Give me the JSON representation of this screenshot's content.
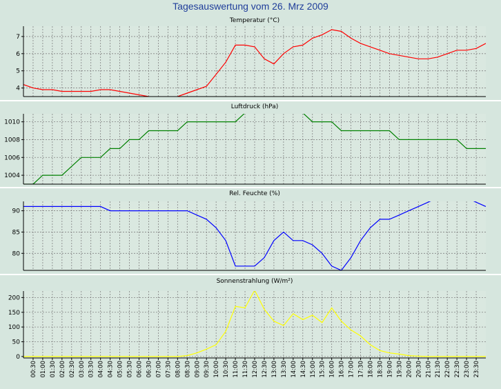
{
  "page_title": "Tagesauswertung vom 26. Mrz 2009",
  "x_labels": [
    "00:30",
    "01:00",
    "01:30",
    "02:00",
    "02:30",
    "03:00",
    "03:30",
    "04:00",
    "04:30",
    "05:00",
    "05:30",
    "06:00",
    "06:30",
    "07:00",
    "07:30",
    "08:00",
    "08:30",
    "09:00",
    "09:30",
    "10:00",
    "10:30",
    "11:00",
    "11:30",
    "12:00",
    "12:30",
    "13:00",
    "13:30",
    "14:00",
    "14:30",
    "15:00",
    "15:30",
    "16:00",
    "16:30",
    "17:00",
    "17:30",
    "18:00",
    "18:30",
    "19:00",
    "19:30",
    "20:00",
    "20:30",
    "21:00",
    "21:30",
    "22:00",
    "22:30",
    "23:00",
    "23:30"
  ],
  "chart_data": [
    {
      "type": "line",
      "title": "Temperatur (°C)",
      "color": "#ff0000",
      "ylim": [
        3.5,
        7.6
      ],
      "yticks": [
        4,
        5,
        6,
        7
      ],
      "x": [
        "00:00",
        "00:30",
        "01:00",
        "01:30",
        "02:00",
        "02:30",
        "03:00",
        "03:30",
        "04:00",
        "04:30",
        "05:00",
        "05:30",
        "06:00",
        "06:30",
        "07:00",
        "07:30",
        "08:00",
        "08:30",
        "09:00",
        "09:30",
        "10:00",
        "10:30",
        "11:00",
        "11:30",
        "12:00",
        "12:30",
        "13:00",
        "13:30",
        "14:00",
        "14:30",
        "15:00",
        "15:30",
        "16:00",
        "16:30",
        "17:00",
        "17:30",
        "18:00",
        "18:30",
        "19:00",
        "19:30",
        "20:00",
        "20:30",
        "21:00",
        "21:30",
        "22:00",
        "22:30",
        "23:00",
        "23:30",
        "24:00"
      ],
      "values": [
        4.2,
        4.0,
        3.9,
        3.9,
        3.8,
        3.8,
        3.8,
        3.8,
        3.9,
        3.9,
        3.8,
        3.7,
        3.6,
        3.5,
        3.4,
        3.4,
        3.5,
        3.7,
        3.9,
        4.1,
        4.8,
        5.5,
        6.5,
        6.5,
        6.4,
        5.7,
        5.4,
        6.0,
        6.4,
        6.5,
        6.9,
        7.1,
        7.4,
        7.3,
        6.9,
        6.6,
        6.4,
        6.2,
        6.0,
        5.9,
        5.8,
        5.7,
        5.7,
        5.8,
        6.0,
        6.2,
        6.2,
        6.3,
        6.6
      ]
    },
    {
      "type": "line",
      "title": "Luftdruck (hPa)",
      "color": "#008000",
      "ylim": [
        1003.0,
        1010.9
      ],
      "yticks": [
        1004,
        1006,
        1008,
        1010
      ],
      "x": [
        "00:00",
        "00:30",
        "01:00",
        "01:30",
        "02:00",
        "02:30",
        "03:00",
        "03:30",
        "04:00",
        "04:30",
        "05:00",
        "05:30",
        "06:00",
        "06:30",
        "07:00",
        "07:30",
        "08:00",
        "08:30",
        "09:00",
        "09:30",
        "10:00",
        "10:30",
        "11:00",
        "11:30",
        "12:00",
        "12:30",
        "13:00",
        "13:30",
        "14:00",
        "14:30",
        "15:00",
        "15:30",
        "16:00",
        "16:30",
        "17:00",
        "17:30",
        "18:00",
        "18:30",
        "19:00",
        "19:30",
        "20:00",
        "20:30",
        "21:00",
        "21:30",
        "22:00",
        "22:30",
        "23:00",
        "23:30",
        "24:00"
      ],
      "values": [
        1003,
        1003,
        1004,
        1004,
        1004,
        1005,
        1006,
        1006,
        1006,
        1007,
        1007,
        1008,
        1008,
        1009,
        1009,
        1009,
        1009,
        1010,
        1010,
        1010,
        1010,
        1010,
        1010,
        1011,
        1011,
        1011,
        1011,
        1011,
        1011,
        1011,
        1010,
        1010,
        1010,
        1009,
        1009,
        1009,
        1009,
        1009,
        1009,
        1008,
        1008,
        1008,
        1008,
        1008,
        1008,
        1008,
        1007,
        1007,
        1007
      ]
    },
    {
      "type": "line",
      "title": "Rel. Feuchte (%)",
      "color": "#0000ff",
      "ylim": [
        76.0,
        92.2
      ],
      "yticks": [
        80,
        85,
        90
      ],
      "x": [
        "00:00",
        "00:30",
        "01:00",
        "01:30",
        "02:00",
        "02:30",
        "03:00",
        "03:30",
        "04:00",
        "04:30",
        "05:00",
        "05:30",
        "06:00",
        "06:30",
        "07:00",
        "07:30",
        "08:00",
        "08:30",
        "09:00",
        "09:30",
        "10:00",
        "10:30",
        "11:00",
        "11:30",
        "12:00",
        "12:30",
        "13:00",
        "13:30",
        "14:00",
        "14:30",
        "15:00",
        "15:30",
        "16:00",
        "16:30",
        "17:00",
        "17:30",
        "18:00",
        "18:30",
        "19:00",
        "19:30",
        "20:00",
        "20:30",
        "21:00",
        "21:30",
        "22:00",
        "22:30",
        "23:00",
        "23:30",
        "24:00"
      ],
      "values": [
        91,
        91,
        91,
        91,
        91,
        91,
        91,
        91,
        91,
        90,
        90,
        90,
        90,
        90,
        90,
        90,
        90,
        90,
        89,
        88,
        86,
        83,
        77,
        77,
        77,
        79,
        83,
        85,
        83,
        83,
        82,
        80,
        77,
        76,
        79,
        83,
        86,
        88,
        88,
        89,
        90,
        91,
        92,
        93,
        94,
        94,
        93,
        92,
        91
      ]
    },
    {
      "type": "line",
      "title": "Sonnenstrahlung (W/m²)",
      "color": "#ffff00",
      "ylim": [
        -5,
        222
      ],
      "yticks": [
        0,
        50,
        100,
        150,
        200
      ],
      "x": [
        "00:00",
        "00:30",
        "01:00",
        "01:30",
        "02:00",
        "02:30",
        "03:00",
        "03:30",
        "04:00",
        "04:30",
        "05:00",
        "05:30",
        "06:00",
        "06:30",
        "07:00",
        "07:30",
        "08:00",
        "08:30",
        "09:00",
        "09:30",
        "10:00",
        "10:30",
        "11:00",
        "11:30",
        "12:00",
        "12:30",
        "13:00",
        "13:30",
        "14:00",
        "14:30",
        "15:00",
        "15:30",
        "16:00",
        "16:30",
        "17:00",
        "17:30",
        "18:00",
        "18:30",
        "19:00",
        "19:30",
        "20:00",
        "20:30",
        "21:00",
        "21:30",
        "22:00",
        "22:30",
        "23:00",
        "23:30",
        "24:00"
      ],
      "values": [
        0,
        0,
        0,
        0,
        0,
        0,
        0,
        0,
        0,
        0,
        0,
        0,
        0,
        0,
        0,
        0,
        0,
        3,
        12,
        25,
        40,
        85,
        170,
        165,
        225,
        160,
        120,
        105,
        145,
        125,
        140,
        115,
        165,
        120,
        90,
        70,
        40,
        20,
        12,
        8,
        3,
        1,
        0,
        0,
        0,
        0,
        0,
        0,
        0
      ]
    }
  ]
}
